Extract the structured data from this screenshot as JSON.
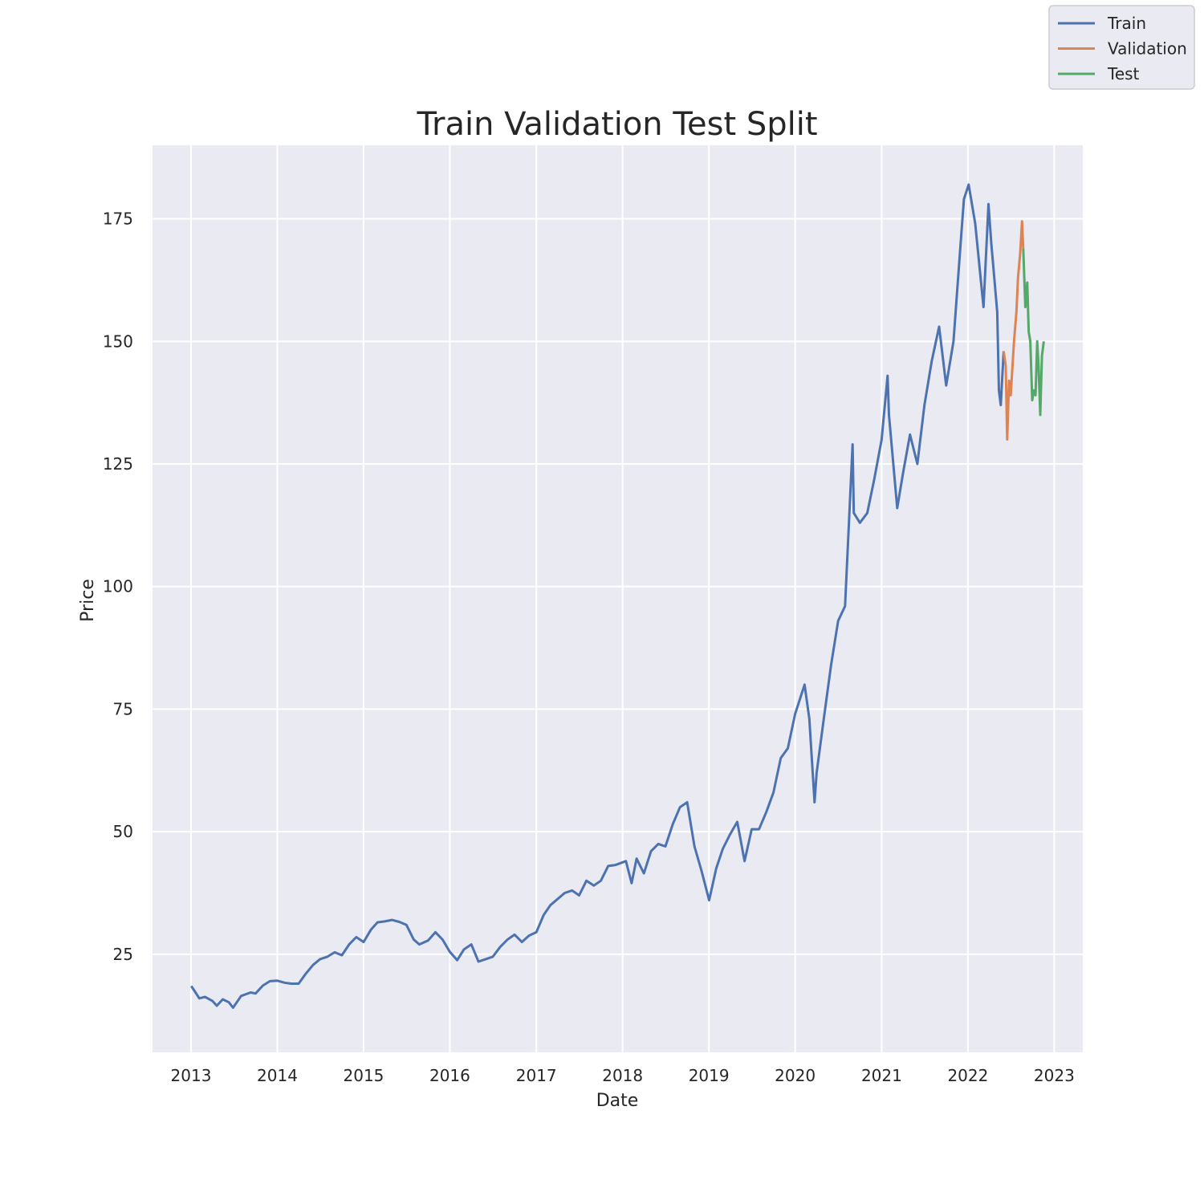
{
  "chart_data": {
    "type": "line",
    "title": "Train Validation Test Split",
    "xlabel": "Date",
    "ylabel": "Price",
    "x_ticks": [
      "2013",
      "2014",
      "2015",
      "2016",
      "2017",
      "2018",
      "2019",
      "2020",
      "2021",
      "2022",
      "2023"
    ],
    "y_ticks": [
      25,
      50,
      75,
      100,
      125,
      150,
      175
    ],
    "xlim": [
      "2012-07-22",
      "2023-05-02"
    ],
    "ylim": [
      5,
      190
    ],
    "grid": true,
    "legend": "top-right",
    "series": [
      {
        "name": "Train",
        "color": "#4c72b0",
        "points": [
          [
            "2013-01-02",
            18.5
          ],
          [
            "2013-01-20",
            17.2
          ],
          [
            "2013-02-05",
            16.0
          ],
          [
            "2013-03-01",
            16.3
          ],
          [
            "2013-04-01",
            15.5
          ],
          [
            "2013-04-20",
            14.5
          ],
          [
            "2013-05-15",
            15.8
          ],
          [
            "2013-06-10",
            15.2
          ],
          [
            "2013-06-28",
            14.1
          ],
          [
            "2013-08-01",
            16.5
          ],
          [
            "2013-09-10",
            17.2
          ],
          [
            "2013-10-01",
            17.0
          ],
          [
            "2013-11-01",
            18.6
          ],
          [
            "2013-12-01",
            19.5
          ],
          [
            "2014-01-01",
            19.6
          ],
          [
            "2014-02-01",
            19.2
          ],
          [
            "2014-03-01",
            19.0
          ],
          [
            "2014-04-01",
            19.0
          ],
          [
            "2014-05-01",
            21.0
          ],
          [
            "2014-06-01",
            22.8
          ],
          [
            "2014-07-01",
            24.0
          ],
          [
            "2014-08-01",
            24.5
          ],
          [
            "2014-09-01",
            25.4
          ],
          [
            "2014-10-01",
            24.8
          ],
          [
            "2014-11-01",
            27.0
          ],
          [
            "2014-12-01",
            28.5
          ],
          [
            "2015-01-01",
            27.5
          ],
          [
            "2015-02-01",
            30.0
          ],
          [
            "2015-03-01",
            31.5
          ],
          [
            "2015-04-01",
            31.7
          ],
          [
            "2015-05-01",
            32.0
          ],
          [
            "2015-06-01",
            31.6
          ],
          [
            "2015-07-01",
            31.0
          ],
          [
            "2015-08-01",
            28.0
          ],
          [
            "2015-08-25",
            27.0
          ],
          [
            "2015-10-01",
            27.8
          ],
          [
            "2015-11-01",
            29.5
          ],
          [
            "2015-12-01",
            28.0
          ],
          [
            "2016-01-01",
            25.5
          ],
          [
            "2016-02-01",
            23.8
          ],
          [
            "2016-03-01",
            26.0
          ],
          [
            "2016-04-01",
            27.0
          ],
          [
            "2016-05-01",
            23.5
          ],
          [
            "2016-06-01",
            24.0
          ],
          [
            "2016-07-01",
            24.5
          ],
          [
            "2016-08-01",
            26.5
          ],
          [
            "2016-09-01",
            28.0
          ],
          [
            "2016-10-01",
            29.0
          ],
          [
            "2016-11-01",
            27.5
          ],
          [
            "2016-12-01",
            28.8
          ],
          [
            "2017-01-01",
            29.5
          ],
          [
            "2017-02-01",
            33.0
          ],
          [
            "2017-03-01",
            35.0
          ],
          [
            "2017-05-01",
            37.5
          ],
          [
            "2017-06-01",
            38.0
          ],
          [
            "2017-07-01",
            37.0
          ],
          [
            "2017-08-01",
            40.0
          ],
          [
            "2017-09-01",
            39.0
          ],
          [
            "2017-10-01",
            40.0
          ],
          [
            "2017-11-01",
            43.0
          ],
          [
            "2017-12-01",
            43.2
          ],
          [
            "2018-01-15",
            44.0
          ],
          [
            "2018-02-08",
            39.5
          ],
          [
            "2018-03-01",
            44.5
          ],
          [
            "2018-04-01",
            41.5
          ],
          [
            "2018-05-01",
            46.0
          ],
          [
            "2018-06-01",
            47.5
          ],
          [
            "2018-07-01",
            47.0
          ],
          [
            "2018-08-01",
            51.5
          ],
          [
            "2018-09-01",
            55.0
          ],
          [
            "2018-10-01",
            56.0
          ],
          [
            "2018-11-01",
            47.0
          ],
          [
            "2018-12-01",
            42.0
          ],
          [
            "2019-01-02",
            36.0
          ],
          [
            "2019-02-01",
            42.5
          ],
          [
            "2019-03-01",
            46.5
          ],
          [
            "2019-04-01",
            49.5
          ],
          [
            "2019-05-01",
            52.0
          ],
          [
            "2019-06-01",
            44.0
          ],
          [
            "2019-07-01",
            50.5
          ],
          [
            "2019-08-01",
            50.5
          ],
          [
            "2019-09-01",
            54.0
          ],
          [
            "2019-10-01",
            58.0
          ],
          [
            "2019-11-01",
            65.0
          ],
          [
            "2019-12-01",
            67.0
          ],
          [
            "2020-01-01",
            74.0
          ],
          [
            "2020-02-10",
            80.0
          ],
          [
            "2020-03-01",
            73.0
          ],
          [
            "2020-03-23",
            56.0
          ],
          [
            "2020-04-01",
            62.0
          ],
          [
            "2020-05-01",
            73.0
          ],
          [
            "2020-06-01",
            84.0
          ],
          [
            "2020-07-01",
            93.0
          ],
          [
            "2020-07-30",
            96.0
          ],
          [
            "2020-08-31",
            129.0
          ],
          [
            "2020-09-05",
            115.0
          ],
          [
            "2020-10-01",
            113.0
          ],
          [
            "2020-11-01",
            115.0
          ],
          [
            "2020-12-01",
            122.0
          ],
          [
            "2021-01-01",
            130.0
          ],
          [
            "2021-01-26",
            143.0
          ],
          [
            "2021-02-01",
            135.0
          ],
          [
            "2021-03-08",
            116.0
          ],
          [
            "2021-04-01",
            123.0
          ],
          [
            "2021-05-01",
            131.0
          ],
          [
            "2021-06-01",
            125.0
          ],
          [
            "2021-07-01",
            137.0
          ],
          [
            "2021-08-01",
            146.0
          ],
          [
            "2021-09-01",
            153.0
          ],
          [
            "2021-10-01",
            141.0
          ],
          [
            "2021-11-01",
            150.0
          ],
          [
            "2021-12-01",
            170.0
          ],
          [
            "2021-12-15",
            179.0
          ],
          [
            "2022-01-04",
            182.0
          ],
          [
            "2022-02-01",
            174.0
          ],
          [
            "2022-03-08",
            157.0
          ],
          [
            "2022-03-29",
            178.0
          ],
          [
            "2022-04-10",
            170.0
          ],
          [
            "2022-05-05",
            156.0
          ],
          [
            "2022-05-12",
            140.0
          ],
          [
            "2022-05-20",
            137.0
          ],
          [
            "2022-06-01",
            148.0
          ]
        ]
      },
      {
        "name": "Validation",
        "color": "#dd8452",
        "points": [
          [
            "2022-06-01",
            148.0
          ],
          [
            "2022-06-10",
            145.0
          ],
          [
            "2022-06-16",
            130.0
          ],
          [
            "2022-06-24",
            142.0
          ],
          [
            "2022-07-01",
            139.0
          ],
          [
            "2022-07-15",
            150.0
          ],
          [
            "2022-07-25",
            156.0
          ],
          [
            "2022-08-01",
            163.0
          ],
          [
            "2022-08-10",
            168.0
          ],
          [
            "2022-08-18",
            174.5
          ],
          [
            "2022-08-23",
            169.0
          ]
        ]
      },
      {
        "name": "Test",
        "color": "#55a868",
        "points": [
          [
            "2022-08-23",
            169.0
          ],
          [
            "2022-09-01",
            157.0
          ],
          [
            "2022-09-09",
            162.0
          ],
          [
            "2022-09-15",
            152.0
          ],
          [
            "2022-09-22",
            150.0
          ],
          [
            "2022-09-30",
            138.0
          ],
          [
            "2022-10-07",
            140.0
          ],
          [
            "2022-10-14",
            139.0
          ],
          [
            "2022-10-21",
            150.0
          ],
          [
            "2022-10-27",
            145.0
          ],
          [
            "2022-11-03",
            135.0
          ],
          [
            "2022-11-10",
            147.0
          ],
          [
            "2022-11-18",
            150.0
          ]
        ]
      }
    ]
  }
}
